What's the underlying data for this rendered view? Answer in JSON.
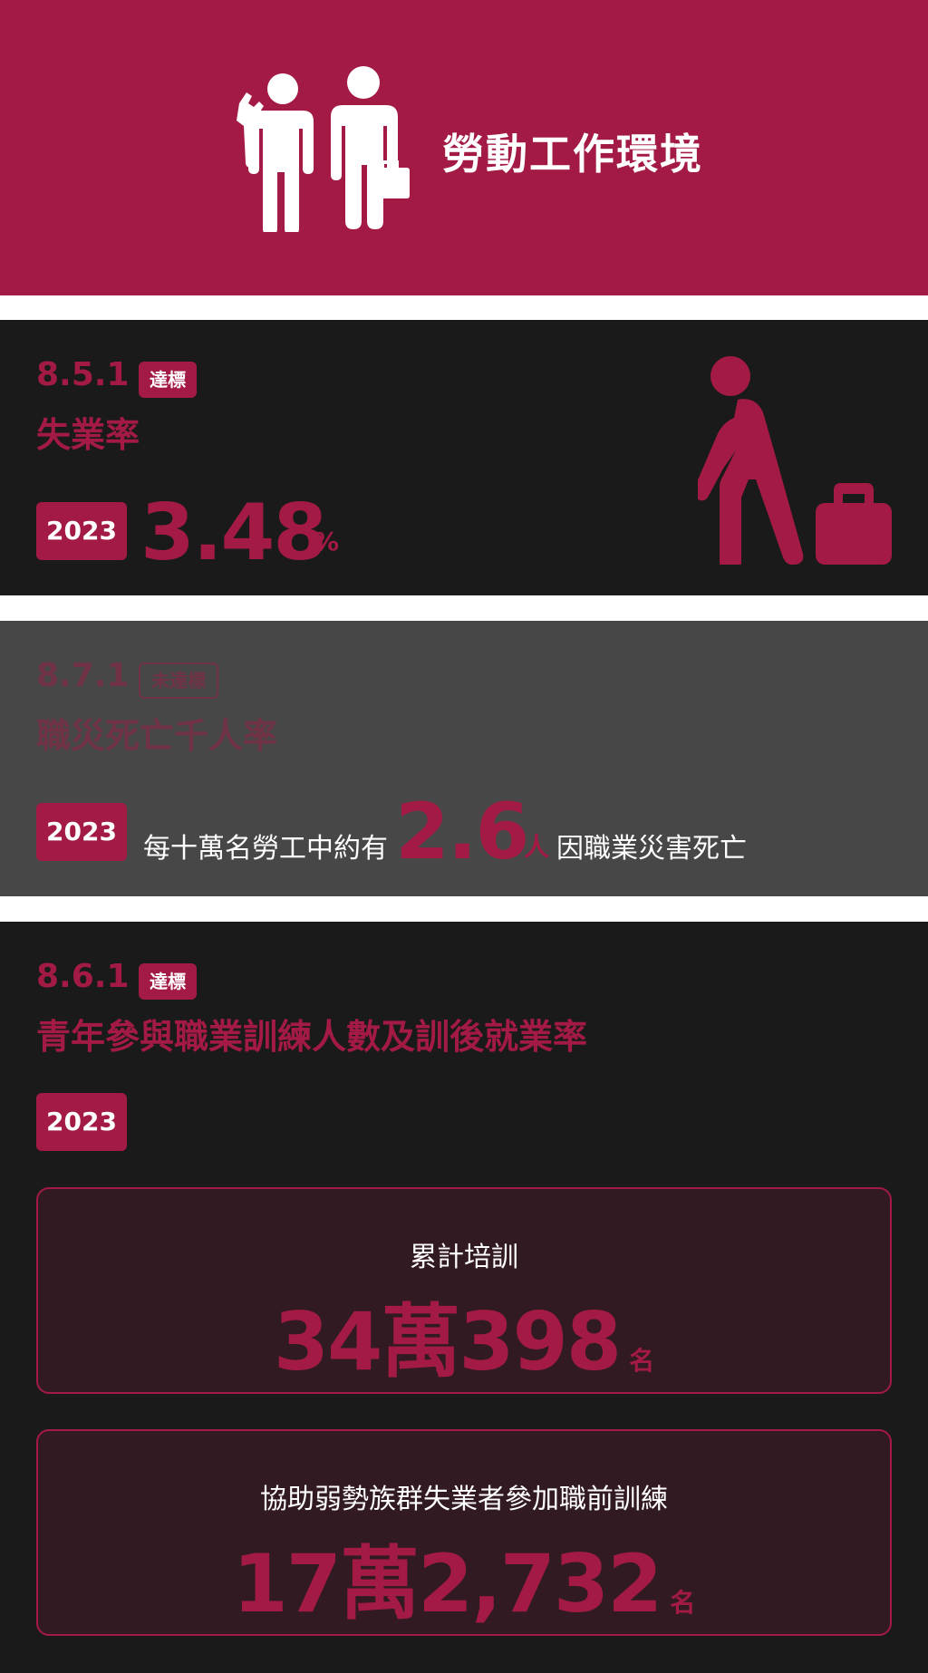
{
  "header": {
    "title": "勞動工作環境"
  },
  "colors": {
    "accent": "#a31a44",
    "dark_bg": "#1a1a1a",
    "gray_bg": "#474747",
    "card_bg": "#321a22"
  },
  "indicator_851": {
    "code": "8.5.1",
    "status": "達標",
    "title": "失業率",
    "year": "2023",
    "value": "3.48",
    "unit": "%",
    "icon": "walking-person-briefcase-icon"
  },
  "indicator_871": {
    "code": "8.7.1",
    "status": "未達標",
    "title": "職災死亡千人率",
    "year": "2023",
    "prefix": "每十萬名勞工中約有",
    "value": "2.6",
    "unit": "人",
    "suffix": "因職業災害死亡"
  },
  "indicator_861": {
    "code": "8.6.1",
    "status": "達標",
    "title": "青年參與職業訓練人數及訓後就業率",
    "year": "2023",
    "cards": [
      {
        "label": "累計培訓",
        "value": "34萬398",
        "unit": "名"
      },
      {
        "label": "協助弱勢族群失業者參加職前訓練",
        "value": "17萬2,732",
        "unit": "名"
      }
    ]
  }
}
